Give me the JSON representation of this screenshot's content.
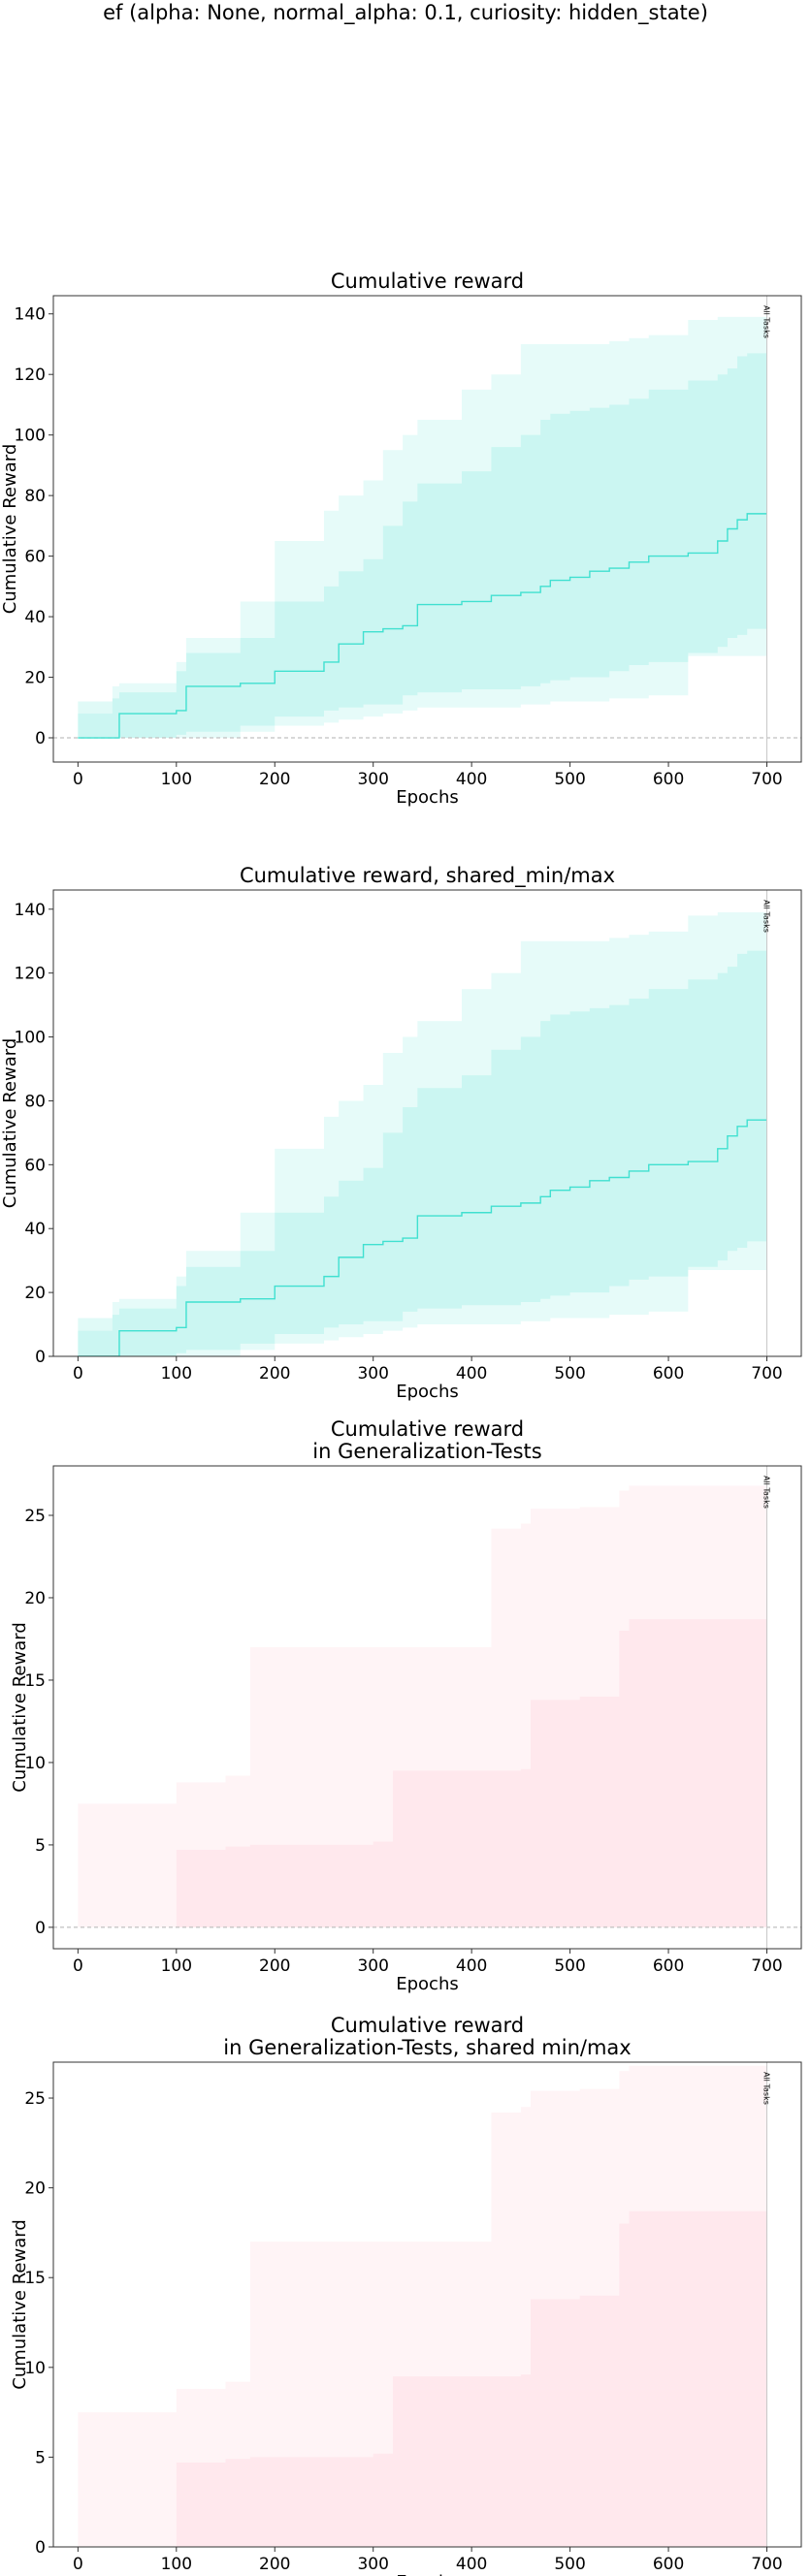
{
  "suptitle": "ef (alpha: None, normal_alpha: 0.1, curiosity: hidden_state)",
  "colors": {
    "reward_line": "#40e0d0",
    "reward_band": "#40e0d0",
    "gen_band": "#ffc0cb",
    "vline": "#c8c8c8",
    "zero_line": "#c0c0c0"
  },
  "chart_data": [
    {
      "type": "line",
      "title": "Cumulative reward",
      "xlabel": "Epochs",
      "ylabel": "Cumulative Reward",
      "xlim": [
        -25,
        735
      ],
      "ylim": [
        -8,
        146
      ],
      "xticks": [
        0,
        100,
        200,
        300,
        400,
        500,
        600,
        700
      ],
      "yticks": [
        0,
        20,
        40,
        60,
        80,
        100,
        120,
        140
      ],
      "zero_line": true,
      "vline": {
        "x": 700,
        "label": "All Tasks"
      },
      "x": [
        0,
        35,
        42,
        100,
        110,
        165,
        200,
        250,
        265,
        290,
        310,
        330,
        345,
        390,
        420,
        450,
        470,
        480,
        500,
        520,
        540,
        560,
        580,
        620,
        650,
        660,
        670,
        680,
        700
      ],
      "series": [
        {
          "line": [
            0,
            0,
            8,
            9,
            17,
            18,
            22,
            25,
            31,
            35,
            36,
            37,
            44,
            45,
            47,
            48,
            50,
            52,
            53,
            55,
            56,
            58,
            60,
            61,
            65,
            69,
            72,
            74,
            74
          ],
          "q_low": [
            0,
            0,
            0,
            1,
            2,
            4,
            7,
            9,
            10,
            11,
            11,
            14,
            15,
            16,
            16,
            17,
            18,
            19,
            20,
            20,
            22,
            24,
            25,
            28,
            30,
            33,
            34,
            36,
            48
          ],
          "q_high": [
            12,
            13,
            15,
            22,
            28,
            33,
            45,
            50,
            55,
            59,
            70,
            78,
            84,
            88,
            96,
            100,
            105,
            107,
            108,
            109,
            110,
            112,
            115,
            118,
            120,
            122,
            126,
            127,
            127
          ],
          "min": [
            0,
            0,
            0,
            0,
            0,
            2,
            4,
            5,
            6,
            7,
            8,
            9,
            10,
            10,
            10,
            11,
            11,
            12,
            12,
            12,
            13,
            13,
            14,
            27,
            27,
            27,
            27,
            27,
            27
          ],
          "max": [
            8,
            17,
            18,
            25,
            33,
            45,
            65,
            75,
            80,
            85,
            95,
            100,
            105,
            115,
            120,
            130,
            130,
            130,
            130,
            130,
            131,
            132,
            133,
            138,
            139,
            139,
            139,
            139,
            139
          ]
        }
      ]
    },
    {
      "type": "line",
      "title": "Cumulative reward, shared_min/max",
      "xlabel": "Epochs",
      "ylabel": "Cumulative Reward",
      "xlim": [
        -25,
        735
      ],
      "ylim": [
        0,
        146
      ],
      "xticks": [
        0,
        100,
        200,
        300,
        400,
        500,
        600,
        700
      ],
      "yticks": [
        0,
        20,
        40,
        60,
        80,
        100,
        120,
        140
      ],
      "zero_line": false,
      "vline": {
        "x": 700,
        "label": "All Tasks"
      },
      "x": [
        0,
        35,
        42,
        100,
        110,
        165,
        200,
        250,
        265,
        290,
        310,
        330,
        345,
        390,
        420,
        450,
        470,
        480,
        500,
        520,
        540,
        560,
        580,
        620,
        650,
        660,
        670,
        680,
        700
      ],
      "series": [
        {
          "line": [
            0,
            0,
            8,
            9,
            17,
            18,
            22,
            25,
            31,
            35,
            36,
            37,
            44,
            45,
            47,
            48,
            50,
            52,
            53,
            55,
            56,
            58,
            60,
            61,
            65,
            69,
            72,
            74,
            74
          ],
          "q_low": [
            0,
            0,
            0,
            1,
            2,
            4,
            7,
            9,
            10,
            11,
            11,
            14,
            15,
            16,
            16,
            17,
            18,
            19,
            20,
            20,
            22,
            24,
            25,
            28,
            30,
            33,
            34,
            36,
            48
          ],
          "q_high": [
            12,
            13,
            15,
            22,
            28,
            33,
            45,
            50,
            55,
            59,
            70,
            78,
            84,
            88,
            96,
            100,
            105,
            107,
            108,
            109,
            110,
            112,
            115,
            118,
            120,
            122,
            126,
            127,
            127
          ],
          "min": [
            0,
            0,
            0,
            0,
            0,
            2,
            4,
            5,
            6,
            7,
            8,
            9,
            10,
            10,
            10,
            11,
            11,
            12,
            12,
            12,
            13,
            13,
            14,
            27,
            27,
            27,
            27,
            27,
            27
          ],
          "max": [
            8,
            17,
            18,
            25,
            33,
            45,
            65,
            75,
            80,
            85,
            95,
            100,
            105,
            115,
            120,
            130,
            130,
            130,
            130,
            130,
            131,
            132,
            133,
            138,
            139,
            139,
            139,
            139,
            139
          ]
        }
      ]
    },
    {
      "type": "area",
      "title": "Cumulative reward\nin Generalization-Tests",
      "xlabel": "Epochs",
      "ylabel": "Cumulative Reward",
      "xlim": [
        -25,
        735
      ],
      "ylim": [
        -1.3,
        28
      ],
      "xticks": [
        0,
        100,
        200,
        300,
        400,
        500,
        600,
        700
      ],
      "yticks": [
        0,
        5,
        10,
        15,
        20,
        25
      ],
      "zero_line": true,
      "vline": {
        "x": 700,
        "label": "All Tasks"
      },
      "x": [
        0,
        80,
        100,
        150,
        175,
        300,
        320,
        410,
        420,
        450,
        460,
        510,
        550,
        560,
        700
      ],
      "series": [
        {
          "q_low": [
            0,
            0,
            0,
            0,
            0,
            0,
            0,
            0,
            0,
            0,
            0,
            0,
            0,
            0,
            0
          ],
          "q_high": [
            0,
            0,
            4.7,
            4.9,
            5.0,
            5.2,
            9.5,
            9.5,
            9.5,
            9.6,
            13.8,
            14.0,
            18.0,
            18.7,
            18.7
          ],
          "min": [
            0,
            0,
            0,
            0,
            0,
            0,
            0,
            0,
            0,
            0,
            0,
            0,
            0,
            0,
            0
          ],
          "max": [
            7.5,
            7.5,
            8.8,
            9.2,
            17.0,
            17.0,
            17.0,
            17.0,
            24.2,
            24.5,
            25.4,
            25.5,
            26.5,
            26.8,
            26.8
          ]
        }
      ]
    },
    {
      "type": "area",
      "title": "Cumulative reward\nin Generalization-Tests, shared min/max",
      "xlabel": "Epochs",
      "ylabel": "Cumulative Reward",
      "xlim": [
        -25,
        735
      ],
      "ylim": [
        0,
        27
      ],
      "xticks": [
        0,
        100,
        200,
        300,
        400,
        500,
        600,
        700
      ],
      "yticks": [
        0,
        5,
        10,
        15,
        20,
        25
      ],
      "zero_line": false,
      "vline": {
        "x": 700,
        "label": "All Tasks"
      },
      "x": [
        0,
        80,
        100,
        150,
        175,
        300,
        320,
        410,
        420,
        450,
        460,
        510,
        550,
        560,
        700
      ],
      "series": [
        {
          "q_low": [
            0,
            0,
            0,
            0,
            0,
            0,
            0,
            0,
            0,
            0,
            0,
            0,
            0,
            0,
            0
          ],
          "q_high": [
            0,
            0,
            4.7,
            4.9,
            5.0,
            5.2,
            9.5,
            9.5,
            9.5,
            9.6,
            13.8,
            14.0,
            18.0,
            18.7,
            18.7
          ],
          "min": [
            0,
            0,
            0,
            0,
            0,
            0,
            0,
            0,
            0,
            0,
            0,
            0,
            0,
            0,
            0
          ],
          "max": [
            7.5,
            7.5,
            8.8,
            9.2,
            17.0,
            17.0,
            17.0,
            17.0,
            24.2,
            24.5,
            25.4,
            25.5,
            26.5,
            26.8,
            26.8
          ]
        }
      ]
    }
  ]
}
